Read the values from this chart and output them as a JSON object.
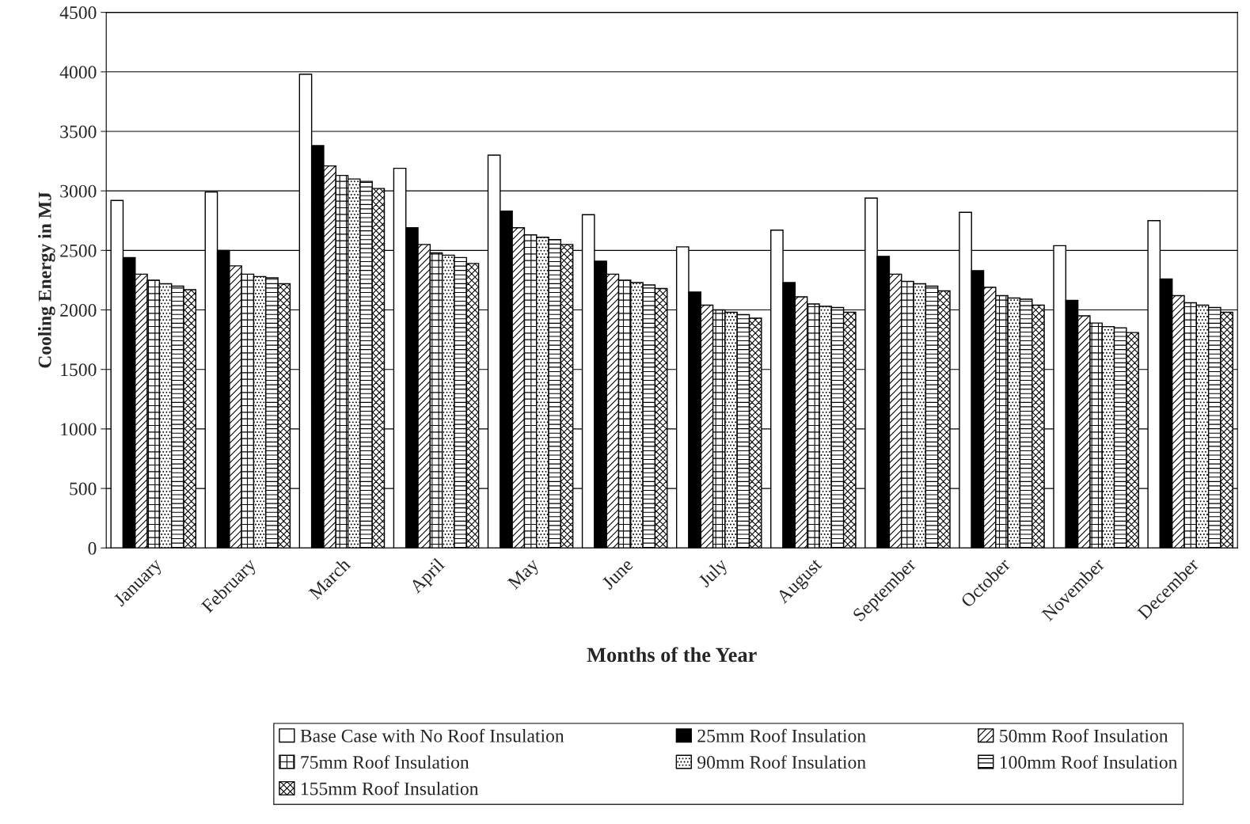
{
  "chart_data": {
    "type": "bar",
    "xlabel": "Months of the Year",
    "ylabel": "Cooling Energy in MJ",
    "categories": [
      "January",
      "February",
      "March",
      "April",
      "May",
      "June",
      "July",
      "August",
      "September",
      "October",
      "November",
      "December"
    ],
    "ylim": [
      0,
      4500
    ],
    "yticks": [
      0,
      500,
      1000,
      1500,
      2000,
      2500,
      3000,
      3500,
      4000,
      4500
    ],
    "grid": "y",
    "legend": "bottom",
    "series": [
      {
        "name": "Base Case with No Roof Insulation",
        "color": "#ffffff",
        "values": [
          2920,
          2990,
          3980,
          3190,
          3300,
          2800,
          2530,
          2670,
          2940,
          2820,
          2540,
          2750
        ]
      },
      {
        "name": "25mm Roof Insulation",
        "color": "#000000",
        "values": [
          2440,
          2500,
          3380,
          2690,
          2830,
          2410,
          2150,
          2230,
          2450,
          2330,
          2080,
          2260
        ]
      },
      {
        "name": "50mm Roof Insulation",
        "color": "#000000",
        "values": [
          2300,
          2370,
          3210,
          2550,
          2690,
          2300,
          2040,
          2110,
          2300,
          2190,
          1950,
          2120
        ]
      },
      {
        "name": "75mm Roof Insulation",
        "color": "#000000",
        "values": [
          2250,
          2300,
          3130,
          2480,
          2630,
          2250,
          2000,
          2050,
          2240,
          2120,
          1890,
          2060
        ]
      },
      {
        "name": "90mm Roof Insulation",
        "color": "#000000",
        "values": [
          2220,
          2280,
          3100,
          2460,
          2610,
          2230,
          1980,
          2030,
          2220,
          2100,
          1860,
          2040
        ]
      },
      {
        "name": "100mm Roof Insulation",
        "color": "#000000",
        "values": [
          2200,
          2270,
          3080,
          2440,
          2590,
          2210,
          1960,
          2020,
          2200,
          2090,
          1850,
          2020
        ]
      },
      {
        "name": "155mm Roof Insulation",
        "color": "#000000",
        "values": [
          2170,
          2220,
          3020,
          2390,
          2550,
          2180,
          1930,
          1980,
          2160,
          2040,
          1810,
          1980
        ]
      }
    ]
  }
}
